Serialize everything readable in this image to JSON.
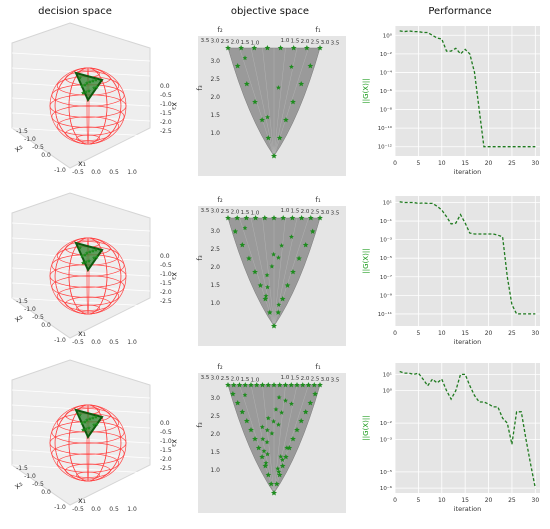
{
  "columns": [
    "decision space",
    "objective space",
    "Performance"
  ],
  "axis_labels": {
    "decision": {
      "x1": "x₁",
      "x2": "x₂",
      "x3": "x₃"
    },
    "objective": {
      "f1": "f₁",
      "f2": "f₂",
      "f3": "f₃"
    }
  },
  "colors": {
    "sphere": "#ff4444",
    "points": "#1e8c1e",
    "line": "#1f7a1f",
    "panel_bg": "#e5e5e5",
    "surface": "#9a9a9a"
  },
  "decision_ticks": {
    "right": [
      "0.0",
      "-0.5",
      "-1.0",
      "-1.5",
      "-2.0",
      "-2.5"
    ],
    "left": [
      "-1.5",
      "-1.0",
      "-0.5",
      "0.0"
    ],
    "bottom": [
      "-1.0",
      "-0.5",
      "0.0",
      "0.5",
      "1.0"
    ],
    "x2_vals": [
      "-1.0",
      "0.0"
    ]
  },
  "objective_ticks": {
    "top_left": [
      "3.5",
      "3.0",
      "2.5",
      "2.0",
      "1.5",
      "1.0"
    ],
    "top_right": [
      "1.0",
      "1.5",
      "2.0",
      "2.5",
      "3.0",
      "3.5"
    ],
    "side": [
      "3.0",
      "2.5",
      "2.0",
      "1.5",
      "1.0"
    ]
  },
  "chart_data": [
    {
      "type": "line",
      "title": "Performance",
      "xlabel": "iteration",
      "ylabel": "||G(X)||",
      "yscale": "log",
      "xlim": [
        0,
        31
      ],
      "ylim": [
        1e-13,
        10
      ],
      "xticks": [
        0,
        5,
        10,
        15,
        20,
        25,
        30
      ],
      "yticks": [
        1,
        0.01,
        0.0001,
        1e-06,
        1e-08,
        1e-10,
        1e-12
      ],
      "ytick_labels": [
        "10⁰",
        "10⁻²",
        "10⁻⁴",
        "10⁻⁶",
        "10⁻⁸",
        "10⁻¹⁰",
        "10⁻¹²"
      ],
      "x": [
        1,
        2,
        3,
        4,
        5,
        6,
        7,
        8,
        9,
        10,
        11,
        12,
        13,
        14,
        15,
        16,
        17,
        18,
        19,
        20,
        21,
        22,
        23,
        24,
        25,
        26,
        27,
        28,
        29,
        30
      ],
      "values": [
        3,
        2.5,
        3,
        2.5,
        2.5,
        2,
        2,
        1,
        0.5,
        0.4,
        0.02,
        0.02,
        0.04,
        0.01,
        0.03,
        0.01,
        0.0001,
        1e-08,
        1e-12,
        1e-12,
        1e-12,
        1e-12,
        1e-12,
        1e-12,
        1e-12,
        1e-12,
        1e-12,
        1e-12,
        1e-12,
        1e-12
      ]
    },
    {
      "type": "line",
      "title": "",
      "xlabel": "iteration",
      "ylabel": "||G(X)||",
      "yscale": "log",
      "xlim": [
        0,
        31
      ],
      "ylim": [
        5e-13,
        50
      ],
      "xticks": [
        0,
        5,
        10,
        15,
        20,
        25,
        30
      ],
      "yticks": [
        10,
        0.1,
        0.001,
        1e-05,
        1e-07,
        1e-09,
        1e-11
      ],
      "ytick_labels": [
        "10¹",
        "10⁻¹",
        "10⁻³",
        "10⁻⁵",
        "10⁻⁷",
        "10⁻⁹",
        "10⁻¹¹"
      ],
      "x": [
        1,
        2,
        3,
        4,
        5,
        6,
        7,
        8,
        9,
        10,
        11,
        12,
        13,
        14,
        15,
        16,
        17,
        18,
        19,
        20,
        21,
        22,
        23,
        24,
        25,
        26,
        27,
        28,
        29,
        30
      ],
      "values": [
        12,
        10,
        10,
        10,
        8,
        9,
        8,
        8,
        4,
        1.5,
        0.3,
        0.05,
        0.06,
        0.5,
        0.06,
        0.005,
        0.004,
        0.004,
        0.004,
        0.004,
        0.004,
        0.003,
        0.002,
        1e-07,
        1e-10,
        1e-11,
        1e-11,
        1e-11,
        1e-11,
        1e-11
      ]
    },
    {
      "type": "line",
      "title": "",
      "xlabel": "iteration",
      "ylabel": "||G(X)||",
      "yscale": "log",
      "xlim": [
        0,
        31
      ],
      "ylim": [
        5e-07,
        50
      ],
      "xticks": [
        0,
        5,
        10,
        15,
        20,
        25,
        30
      ],
      "yticks": [
        10,
        1,
        0.01,
        0.001,
        1e-05,
        1e-06
      ],
      "ytick_labels": [
        "10¹",
        "10⁰",
        "10⁻²",
        "10⁻³",
        "10⁻⁵",
        "10⁻⁶"
      ],
      "x": [
        1,
        2,
        3,
        4,
        5,
        6,
        7,
        8,
        9,
        10,
        11,
        12,
        13,
        14,
        15,
        16,
        17,
        18,
        19,
        20,
        21,
        22,
        23,
        24,
        25,
        26,
        27,
        28,
        29,
        30
      ],
      "values": [
        15,
        12,
        12,
        10,
        12,
        5,
        2,
        5,
        3,
        5,
        1,
        0.3,
        1,
        10,
        10,
        2,
        0.5,
        0.2,
        0.2,
        0.15,
        0.1,
        0.1,
        0.02,
        0.01,
        0.0005,
        0.05,
        0.05,
        0.001,
        3e-05,
        1e-06
      ]
    }
  ]
}
